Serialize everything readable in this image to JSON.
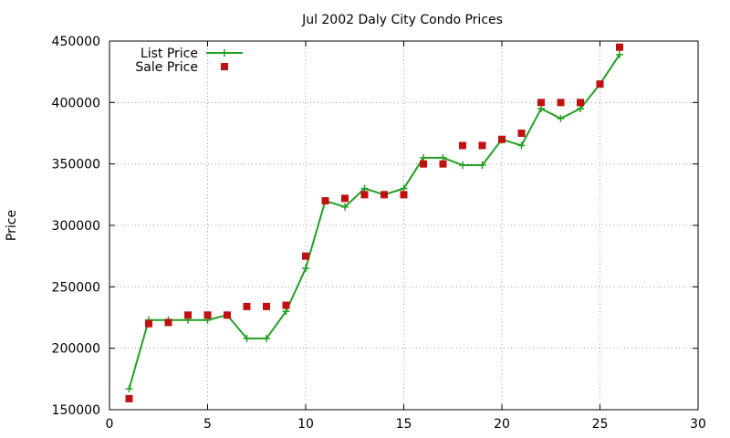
{
  "chart_data": {
    "type": "line",
    "title": "Jul 2002 Daly City Condo Prices",
    "xlabel": "",
    "ylabel": "Price",
    "xlim": [
      0,
      30
    ],
    "ylim": [
      150000,
      450000
    ],
    "xticks": [
      0,
      5,
      10,
      15,
      20,
      25,
      30
    ],
    "yticks": [
      150000,
      200000,
      250000,
      300000,
      350000,
      400000,
      450000
    ],
    "grid": true,
    "legend_position": "top-left",
    "series": [
      {
        "name": "List Price",
        "style": "linespoints",
        "marker": "plus",
        "color": "#22a022",
        "x": [
          1,
          2,
          3,
          4,
          5,
          6,
          7,
          8,
          9,
          10,
          11,
          12,
          13,
          14,
          15,
          16,
          17,
          18,
          19,
          20,
          21,
          22,
          23,
          24,
          25,
          26
        ],
        "y": [
          167000,
          223000,
          223000,
          223000,
          223000,
          227000,
          208000,
          208000,
          230000,
          265000,
          320000,
          315000,
          330000,
          325000,
          330000,
          355000,
          355000,
          349000,
          349000,
          370000,
          365000,
          395000,
          387000,
          395000,
          415000,
          439000
        ]
      },
      {
        "name": "Sale Price",
        "style": "points",
        "marker": "square",
        "color": "#c01010",
        "x": [
          1,
          2,
          3,
          4,
          5,
          6,
          7,
          8,
          9,
          10,
          11,
          12,
          13,
          14,
          15,
          16,
          17,
          18,
          19,
          20,
          21,
          22,
          23,
          24,
          25,
          26
        ],
        "y": [
          159000,
          220000,
          221000,
          227000,
          227000,
          227000,
          234000,
          234000,
          235000,
          275000,
          320000,
          322000,
          325000,
          325000,
          325000,
          350000,
          350000,
          365000,
          365000,
          370000,
          375000,
          400000,
          400000,
          400000,
          415000,
          445000
        ]
      }
    ]
  }
}
